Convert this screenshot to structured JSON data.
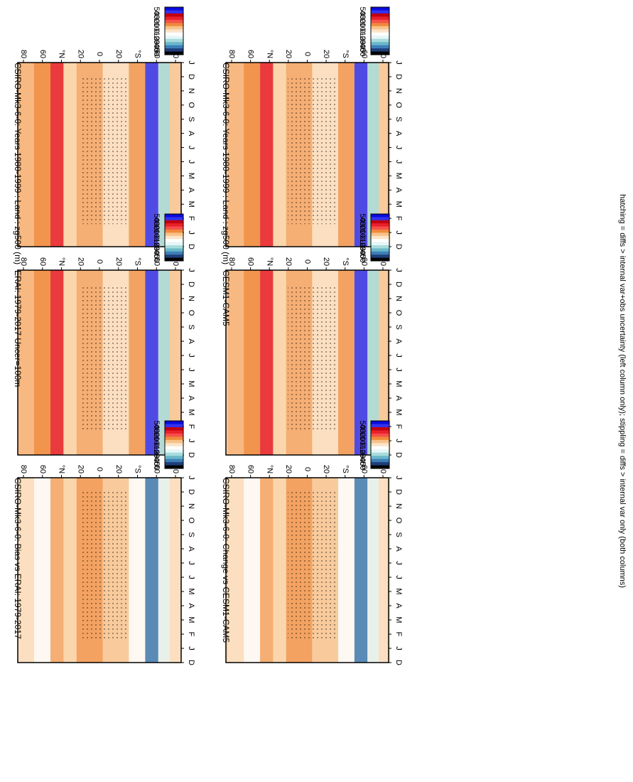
{
  "colorbar": {
    "labels": [
      "50",
      "40",
      "30",
      "20",
      "10",
      "0",
      "-10",
      "-20",
      "-30",
      "-40",
      "-50"
    ],
    "colors": [
      "#0a0adc",
      "#3232f0",
      "#c00010",
      "#e8202a",
      "#f5504a",
      "#f08a3c",
      "#f7c28a",
      "#fbe4c8",
      "#ffffff",
      "#e6f6f6",
      "#a8dcdc",
      "#6ab7c9",
      "#3d7fb8",
      "#1f3f7a",
      "#000000"
    ]
  },
  "footnote": "hatching = diffs > internal var+obs uncertainty (left column only); stippling = diffs > internal var only (both columns)",
  "chart_data": [
    {
      "type": "heatmap",
      "title": "CSIRO-Mk3-6-0: Years 1980-1999 : Land : zg500 (m)",
      "months": [
        "D",
        "J",
        "F",
        "M",
        "A",
        "M",
        "J",
        "J",
        "A",
        "S",
        "O",
        "N",
        "D",
        "J"
      ],
      "lat_ticks": [
        "80",
        "60",
        "°N",
        "20",
        "0",
        "20",
        "°S",
        "60",
        "80"
      ],
      "column": "left",
      "row": "top"
    },
    {
      "type": "heatmap",
      "title": "CSIRO-Mk3-6-0: Years 1980-1999 : Land : zg500 (m)",
      "months": [
        "D",
        "J",
        "F",
        "M",
        "A",
        "M",
        "J",
        "J",
        "A",
        "S",
        "O",
        "N",
        "D",
        "J"
      ],
      "lat_ticks": [
        "80",
        "60",
        "°N",
        "20",
        "0",
        "20",
        "°S",
        "60",
        "80"
      ],
      "column": "right",
      "row": "top"
    },
    {
      "type": "heatmap",
      "title": "ERAI: 1979-2017 Uncer=100m",
      "months": [
        "D",
        "J",
        "F",
        "M",
        "A",
        "M",
        "J",
        "J",
        "A",
        "S",
        "O",
        "N",
        "D",
        "J"
      ],
      "lat_ticks": [
        "80",
        "60",
        "°N",
        "20",
        "0",
        "20",
        "°S",
        "60",
        "80"
      ],
      "column": "left",
      "row": "middle"
    },
    {
      "type": "heatmap",
      "title": "CESM1-CAM5",
      "months": [
        "D",
        "J",
        "F",
        "M",
        "A",
        "M",
        "J",
        "J",
        "A",
        "S",
        "O",
        "N",
        "D",
        "J"
      ],
      "lat_ticks": [
        "80",
        "60",
        "°N",
        "20",
        "0",
        "20",
        "°S",
        "60",
        "80"
      ],
      "column": "right",
      "row": "middle"
    },
    {
      "type": "heatmap",
      "title": "CSIRO-Mk3-6-0: Bias vs ERAI: 1979-2017",
      "months": [
        "D",
        "J",
        "F",
        "M",
        "A",
        "M",
        "J",
        "J",
        "A",
        "S",
        "O",
        "N",
        "D",
        "J"
      ],
      "lat_ticks": [
        "80",
        "60",
        "°N",
        "20",
        "0",
        "20",
        "°S",
        "60",
        "80"
      ],
      "column": "left",
      "row": "bottom"
    },
    {
      "type": "heatmap",
      "title": "CSIRO-Mk3-6-0: Change vs CESM1-CAM5",
      "months": [
        "D",
        "J",
        "F",
        "M",
        "A",
        "M",
        "J",
        "J",
        "A",
        "S",
        "O",
        "N",
        "D",
        "J"
      ],
      "lat_ticks": [
        "80",
        "60",
        "°N",
        "20",
        "0",
        "20",
        "°S",
        "60",
        "80"
      ],
      "column": "right",
      "row": "bottom"
    }
  ]
}
